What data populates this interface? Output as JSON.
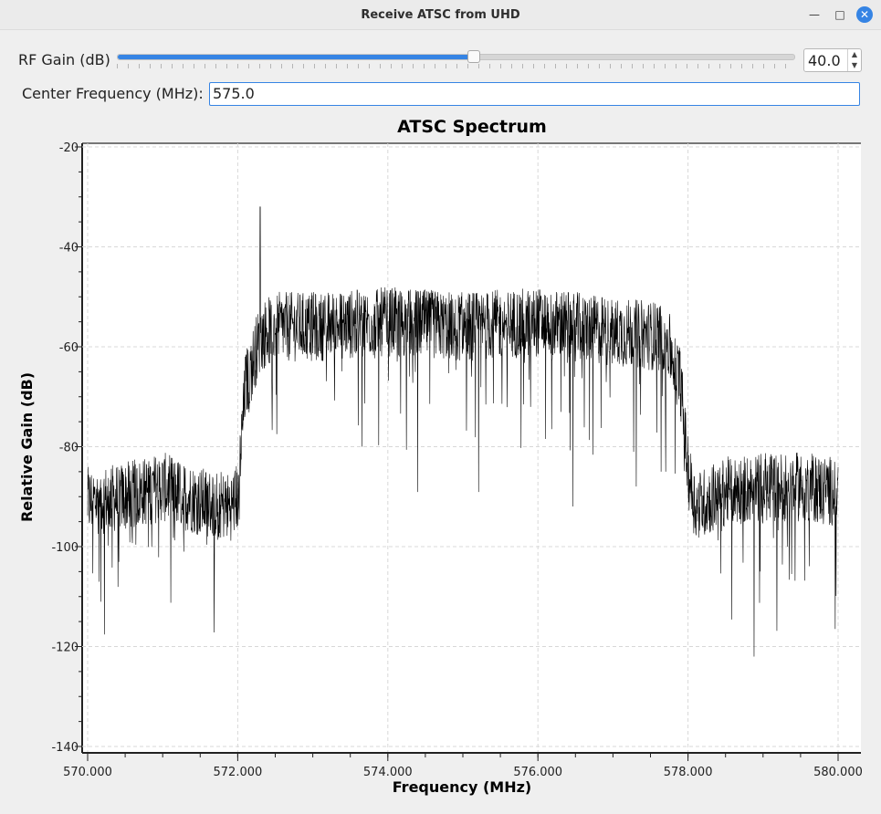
{
  "window": {
    "title": "Receive ATSC from UHD",
    "min_icon": "minimize-icon",
    "max_icon": "maximize-icon",
    "close_icon": "close-icon"
  },
  "rf_gain": {
    "label": "RF Gain (dB)",
    "value": "40.0",
    "slider_fraction": 0.525
  },
  "center_frequency": {
    "label": "Center Frequency (MHz):",
    "value": "575.0"
  },
  "chart_data": {
    "type": "line",
    "title": "ATSC Spectrum",
    "xlabel": "Frequency (MHz)",
    "ylabel": "Relative Gain (dB)",
    "xlim": [
      570.0,
      580.0
    ],
    "ylim": [
      -140,
      -20
    ],
    "x_ticks": [
      "570.000",
      "572.000",
      "574.000",
      "576.000",
      "578.000",
      "580.000"
    ],
    "y_ticks": [
      "-20",
      "-40",
      "-60",
      "-80",
      "-100",
      "-120",
      "-140"
    ],
    "grid": true,
    "series": [
      {
        "color": "#000000",
        "x": [
          570.0,
          570.5,
          571.0,
          571.5,
          571.9,
          572.0,
          572.1,
          572.3,
          572.5,
          573.0,
          574.0,
          575.0,
          576.0,
          577.0,
          577.7,
          577.9,
          578.0,
          578.1,
          578.5,
          579.0,
          579.5,
          580.0
        ],
        "values": [
          -91,
          -90,
          -88,
          -91,
          -92,
          -90,
          -68,
          -58,
          -56,
          -56,
          -55,
          -56,
          -55,
          -57,
          -58,
          -67,
          -85,
          -92,
          -89,
          -88,
          -88,
          -89
        ]
      }
    ],
    "annotations": [
      {
        "x": 572.3,
        "value": -32,
        "label": ""
      }
    ]
  }
}
